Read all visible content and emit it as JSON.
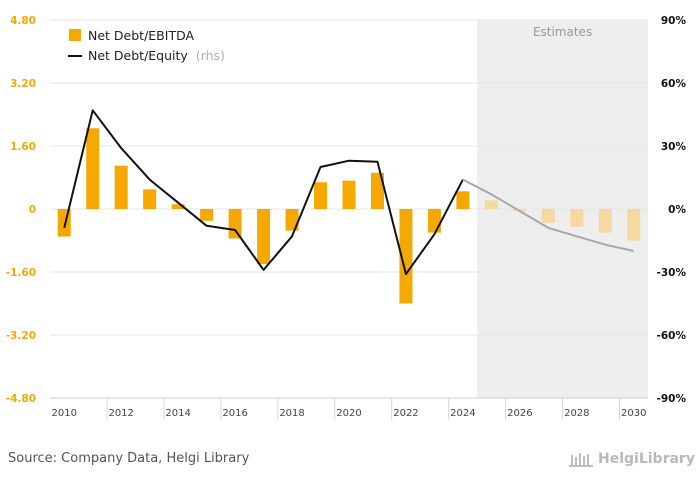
{
  "chart_data": {
    "type": "bar+line",
    "categories": [
      2010,
      2011,
      2012,
      2013,
      2014,
      2015,
      2016,
      2017,
      2018,
      2019,
      2020,
      2021,
      2022,
      2023,
      2024,
      2025,
      2026,
      2027,
      2028,
      2029,
      2030
    ],
    "x_tick_labels": [
      "2010",
      "2012",
      "2014",
      "2016",
      "2018",
      "2020",
      "2022",
      "2024",
      "2026",
      "2028",
      "2030"
    ],
    "left_ticks": [
      "4.80",
      "3.20",
      "1.60",
      "0",
      "-1.60",
      "-3.20",
      "-4.80"
    ],
    "right_ticks": [
      "90%",
      "60%",
      "30%",
      "0%",
      "-30%",
      "-60%",
      "-90%"
    ],
    "left_range": [
      -4.8,
      4.8
    ],
    "right_range": [
      -90,
      90
    ],
    "estimates_from": 2025,
    "estimates_label": "Estimates",
    "series": [
      {
        "name": "Net Debt/EBITDA",
        "kind": "bar",
        "axis": "left",
        "color": "#f5a800",
        "estimate_color": "#f6d9a0",
        "values": [
          -0.7,
          2.05,
          1.1,
          0.5,
          0.12,
          -0.3,
          -0.75,
          -1.4,
          -0.55,
          0.68,
          0.72,
          0.92,
          -2.4,
          -0.6,
          0.45,
          0.22,
          -0.05,
          -0.35,
          -0.45,
          -0.6,
          -0.8
        ]
      },
      {
        "name": "Net Debt/Equity",
        "name_suffix": "(rhs)",
        "kind": "line",
        "axis": "right",
        "color": "#111111",
        "estimate_color": "#a8a8a8",
        "values": [
          -9,
          47,
          29,
          14,
          3,
          -8,
          -10,
          -29,
          -13,
          20,
          23,
          22.5,
          -31,
          -12,
          14,
          7,
          -1,
          -9,
          -13,
          -17,
          -20
        ]
      }
    ]
  },
  "legend": {
    "bar_label": "Net Debt/EBITDA",
    "line_label": "Net Debt/Equity",
    "line_suffix": "(rhs)"
  },
  "footer": {
    "source": "Source: Company Data, Helgi Library",
    "brand": "HelgiLibrary"
  }
}
